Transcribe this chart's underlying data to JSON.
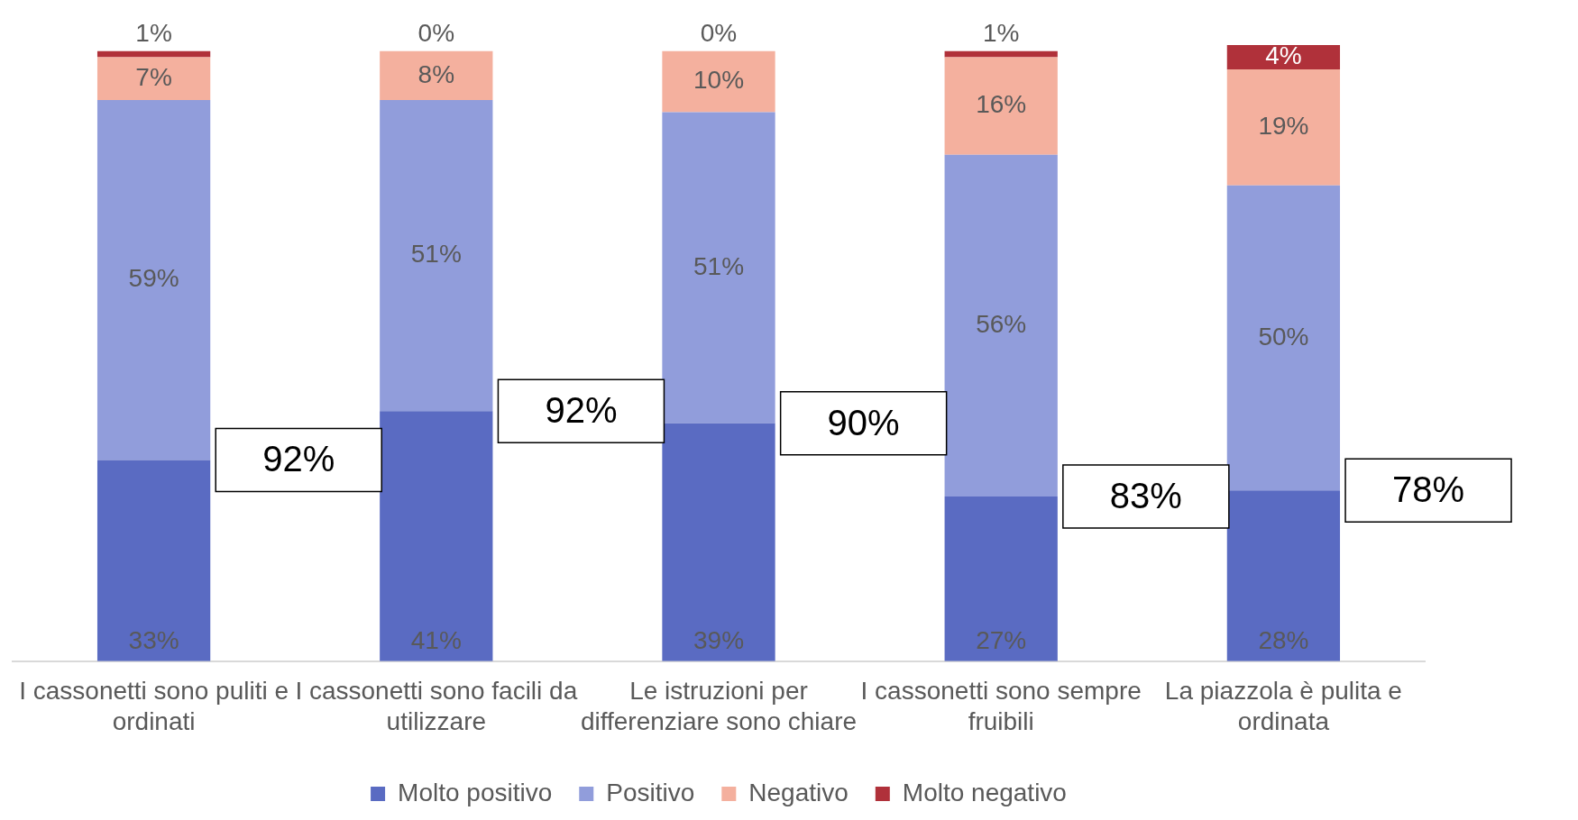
{
  "chart_data": {
    "type": "bar",
    "stacked": true,
    "legend": "bottom",
    "grid": false,
    "categories": [
      "I cassonetti sono puliti e ordinati",
      "I cassonetti sono facili da utilizzare",
      "Le istruzioni per differenziare sono chiare",
      "I cassonetti sono sempre fruibili",
      "La piazzola è pulita e ordinata"
    ],
    "series": [
      {
        "name": "Molto positivo",
        "color": "#5a6bc2",
        "values": [
          33,
          41,
          39,
          27,
          28
        ],
        "value_labels": [
          "33%",
          "41%",
          "39%",
          "27%",
          "28%"
        ]
      },
      {
        "name": "Positivo",
        "color": "#919ddb",
        "values": [
          59,
          51,
          51,
          56,
          50
        ],
        "value_labels": [
          "59%",
          "51%",
          "51%",
          "56%",
          "50%"
        ]
      },
      {
        "name": "Negativo",
        "color": "#f4b09e",
        "values": [
          7,
          8,
          10,
          16,
          19
        ],
        "value_labels": [
          "7%",
          "8%",
          "10%",
          "16%",
          "19%"
        ]
      },
      {
        "name": "Molto negativo",
        "color": "#b0313a",
        "values": [
          1,
          0,
          0,
          1,
          4
        ],
        "value_labels": [
          "1%",
          "0%",
          "0%",
          "1%",
          "4%"
        ]
      }
    ],
    "annotations": [
      "92%",
      "92%",
      "90%",
      "83%",
      "78%"
    ]
  }
}
